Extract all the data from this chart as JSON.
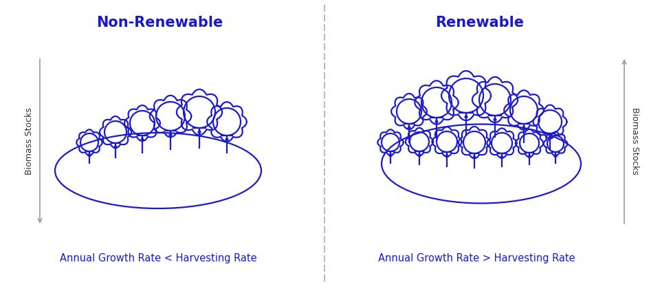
{
  "bg_color": "#ffffff",
  "tree_color": "#1a1acc",
  "axis_color": "#999999",
  "title_color": "#1a1acc",
  "label_color": "#1a1acc",
  "divider_color": "#bbbbbb",
  "title_left": "Non-Renewable",
  "title_right": "Renewable",
  "caption_left": "Annual Growth Rate < Harvesting Rate",
  "caption_right": "Annual Growth Rate > Harvesting Rate",
  "ylabel": "Biomass Stocks"
}
